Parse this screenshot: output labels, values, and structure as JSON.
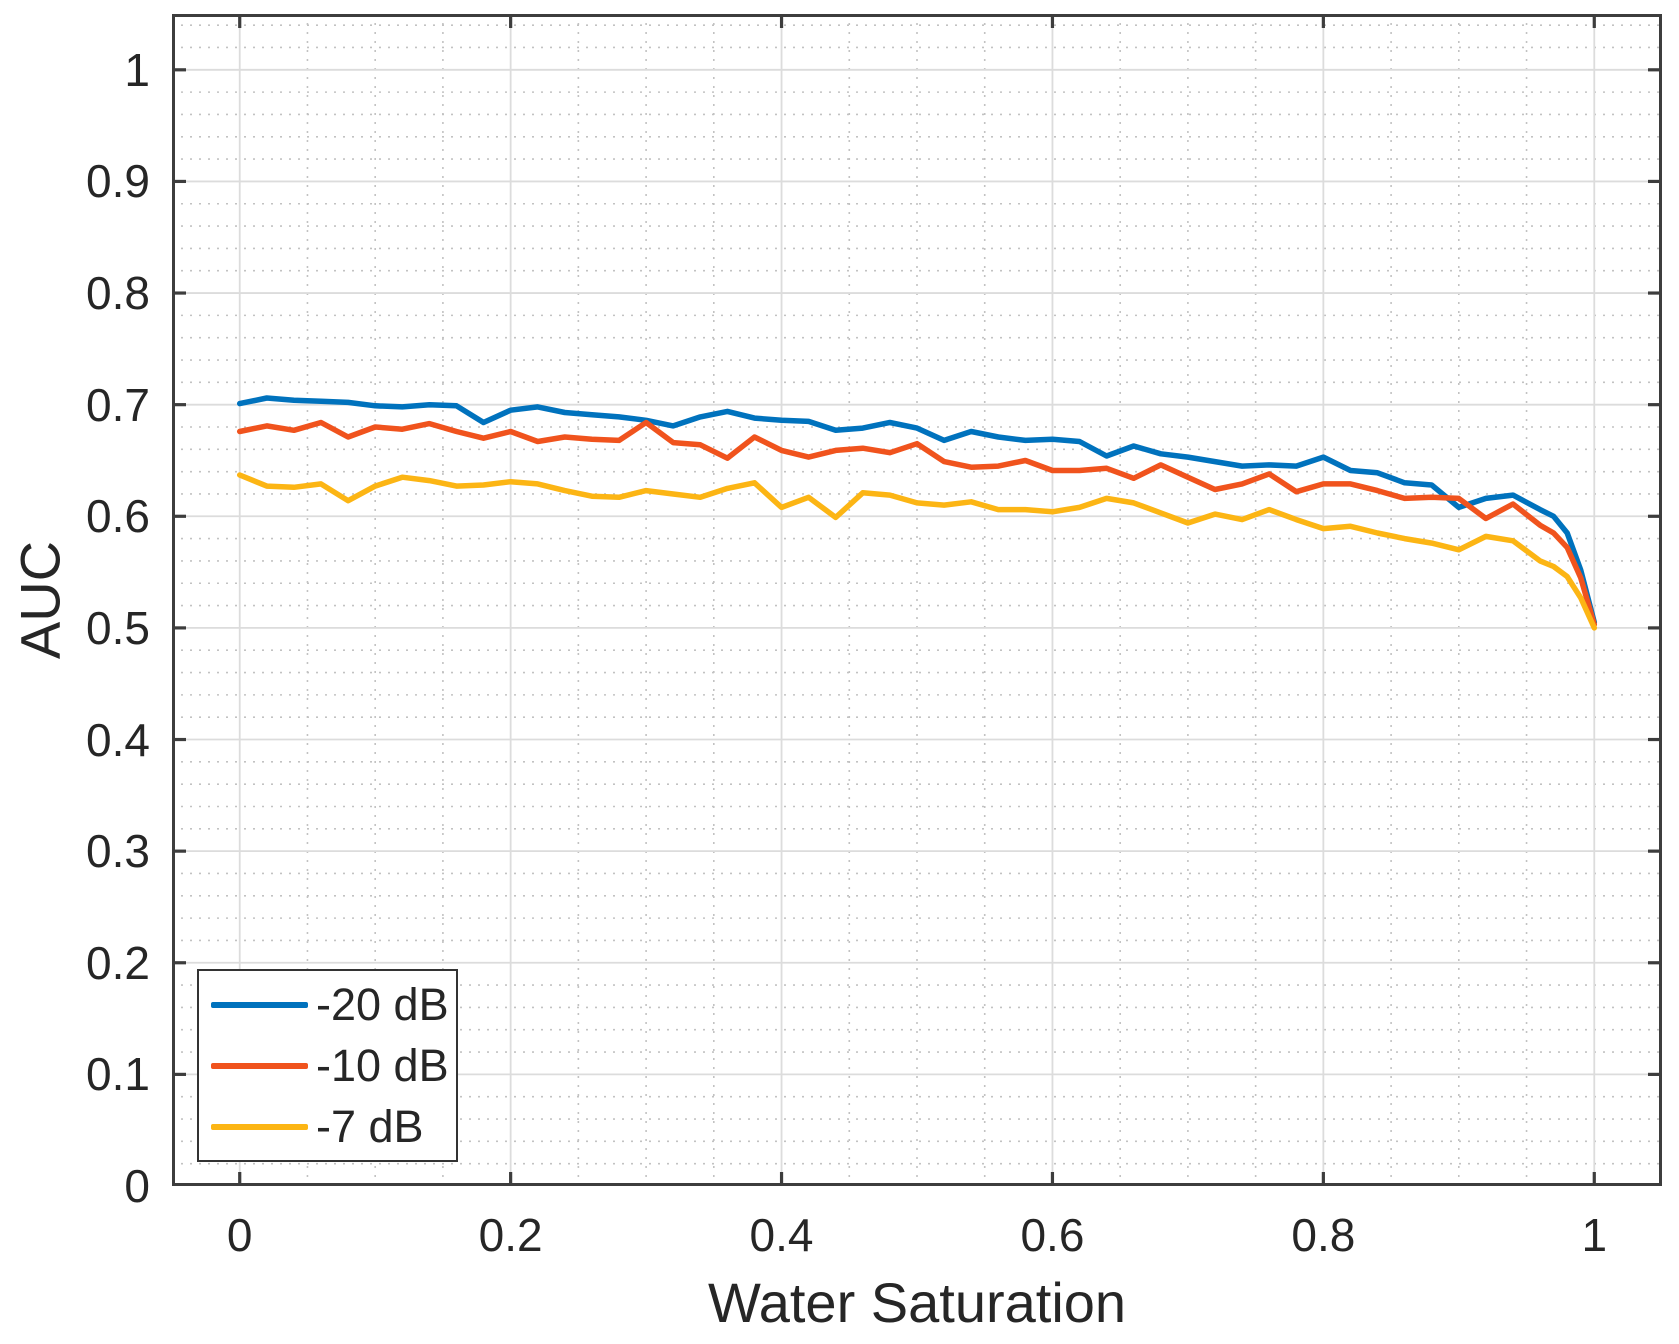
{
  "figure": {
    "background": "#ffffff"
  },
  "chart_data": {
    "type": "line",
    "title": "",
    "xlabel": "Water Saturation",
    "ylabel": "AUC",
    "xlim": [
      -0.05,
      1.05
    ],
    "ylim": [
      0,
      1.05
    ],
    "xticks": [
      0,
      0.2,
      0.4,
      0.6,
      0.8,
      1
    ],
    "xtick_labels": [
      "0",
      "0.2",
      "0.4",
      "0.6",
      "0.8",
      "1"
    ],
    "yticks": [
      0,
      0.1,
      0.2,
      0.3,
      0.4,
      0.5,
      0.6,
      0.7,
      0.8,
      0.9,
      1
    ],
    "ytick_labels": [
      "0",
      "0.1",
      "0.2",
      "0.3",
      "0.4",
      "0.5",
      "0.6",
      "0.7",
      "0.8",
      "0.9",
      "1"
    ],
    "grid": "major-solid plus minor-dotted",
    "minor_x_step": 0.05,
    "minor_y_step": 0.02,
    "axis_color": "#3d3d3d",
    "major_grid_color": "#dcdcdc",
    "minor_grid_color": "#c2c2c2",
    "text_color": "#262626",
    "legend": {
      "position": "southwest"
    },
    "x": [
      0,
      0.02,
      0.04,
      0.06,
      0.08,
      0.1,
      0.12,
      0.14,
      0.16,
      0.18,
      0.2,
      0.22,
      0.24,
      0.26,
      0.28,
      0.3,
      0.32,
      0.34,
      0.36,
      0.38,
      0.4,
      0.42,
      0.44,
      0.46,
      0.48,
      0.5,
      0.52,
      0.54,
      0.56,
      0.58,
      0.6,
      0.62,
      0.64,
      0.66,
      0.68,
      0.7,
      0.72,
      0.74,
      0.76,
      0.78,
      0.8,
      0.82,
      0.84,
      0.86,
      0.88,
      0.9,
      0.92,
      0.94,
      0.96,
      0.97,
      0.98,
      0.99,
      1.0
    ],
    "series": [
      {
        "name": "-20 dB",
        "color": "#0072BD",
        "values": [
          0.701,
          0.706,
          0.704,
          0.703,
          0.702,
          0.699,
          0.698,
          0.7,
          0.699,
          0.684,
          0.695,
          0.698,
          0.693,
          0.691,
          0.689,
          0.686,
          0.681,
          0.689,
          0.694,
          0.688,
          0.686,
          0.685,
          0.677,
          0.679,
          0.684,
          0.679,
          0.668,
          0.676,
          0.671,
          0.668,
          0.669,
          0.667,
          0.654,
          0.663,
          0.656,
          0.653,
          0.649,
          0.645,
          0.646,
          0.645,
          0.653,
          0.641,
          0.639,
          0.63,
          0.628,
          0.608,
          0.616,
          0.619,
          0.606,
          0.6,
          0.585,
          0.552,
          0.505
        ]
      },
      {
        "name": "-10 dB",
        "color": "#F0531D",
        "values": [
          0.676,
          0.681,
          0.677,
          0.684,
          0.671,
          0.68,
          0.678,
          0.683,
          0.676,
          0.67,
          0.676,
          0.667,
          0.671,
          0.669,
          0.668,
          0.684,
          0.666,
          0.664,
          0.652,
          0.671,
          0.659,
          0.653,
          0.659,
          0.661,
          0.657,
          0.665,
          0.649,
          0.644,
          0.645,
          0.65,
          0.641,
          0.641,
          0.643,
          0.634,
          0.646,
          0.635,
          0.624,
          0.629,
          0.638,
          0.622,
          0.629,
          0.629,
          0.623,
          0.616,
          0.617,
          0.616,
          0.598,
          0.611,
          0.592,
          0.585,
          0.572,
          0.545,
          0.503
        ]
      },
      {
        "name": "-7 dB",
        "color": "#FCB514",
        "values": [
          0.637,
          0.627,
          0.626,
          0.629,
          0.614,
          0.627,
          0.635,
          0.632,
          0.627,
          0.628,
          0.631,
          0.629,
          0.623,
          0.618,
          0.617,
          0.623,
          0.62,
          0.617,
          0.625,
          0.63,
          0.608,
          0.617,
          0.599,
          0.621,
          0.619,
          0.612,
          0.61,
          0.613,
          0.606,
          0.606,
          0.604,
          0.608,
          0.616,
          0.612,
          0.603,
          0.594,
          0.602,
          0.597,
          0.606,
          0.597,
          0.589,
          0.591,
          0.585,
          0.58,
          0.576,
          0.57,
          0.582,
          0.578,
          0.56,
          0.555,
          0.546,
          0.527,
          0.5
        ]
      }
    ]
  }
}
